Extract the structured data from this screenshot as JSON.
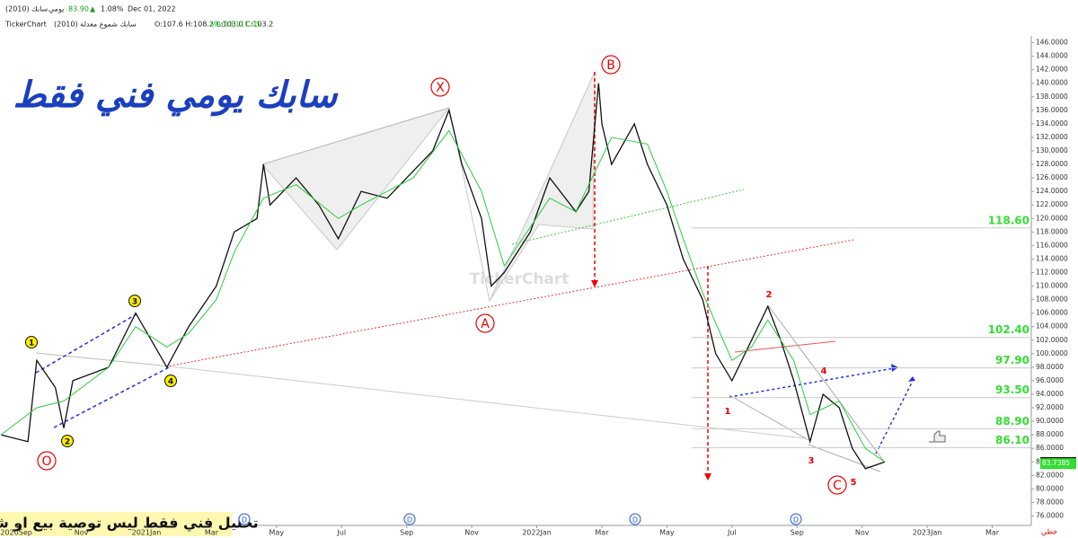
{
  "chart_data": {
    "type": "line",
    "title": "سابك يومي فني فقط",
    "header": {
      "symbol": "سابك (2010)",
      "period": "يومي",
      "price": "83.90",
      "arrow": "▲",
      "change": "1.08%",
      "date": "Dec 01, 2022",
      "brand": "TickerChart",
      "series_name": "سابك شموع معدلة (2010)",
      "ohlc": "O:107.6 H:108.2 L:103.0 C:103.2",
      "ma_name": "MA(13)",
      "ma_value": "111.05"
    },
    "watermark": "TickerChart",
    "note": "تحليل فني فقط ليس توصية بيع او شراء",
    "chart_style": "خطي",
    "xlim": [
      -0.5,
      31.2
    ],
    "xticks": [
      {
        "value": 0,
        "label": "2020Sep"
      },
      {
        "value": 2,
        "label": "Nov"
      },
      {
        "value": 4,
        "label": "2021Jan"
      },
      {
        "value": 6,
        "label": "Mar"
      },
      {
        "value": 8,
        "label": "May"
      },
      {
        "value": 10,
        "label": "Jul"
      },
      {
        "value": 12,
        "label": "Sep"
      },
      {
        "value": 14,
        "label": "Nov"
      },
      {
        "value": 16,
        "label": "2022Jan"
      },
      {
        "value": 18,
        "label": "Mar"
      },
      {
        "value": 20,
        "label": "May"
      },
      {
        "value": 22,
        "label": "Jul"
      },
      {
        "value": 24,
        "label": "Sep"
      },
      {
        "value": 26,
        "label": "Nov"
      },
      {
        "value": 28,
        "label": "2023Jan"
      },
      {
        "value": 30,
        "label": "Mar"
      }
    ],
    "ylim": [
      75,
      147
    ],
    "yticks": [
      {
        "value": 76,
        "label": "76.0000"
      },
      {
        "value": 78,
        "label": "78.0000"
      },
      {
        "value": 80,
        "label": "80.0000"
      },
      {
        "value": 82,
        "label": "82.0000"
      },
      {
        "value": 84,
        "label": "84.0000"
      },
      {
        "value": 86,
        "label": "86.0000"
      },
      {
        "value": 88,
        "label": "88.0000"
      },
      {
        "value": 90,
        "label": "90.0000"
      },
      {
        "value": 92,
        "label": "92.0000"
      },
      {
        "value": 94,
        "label": "94.0000"
      },
      {
        "value": 96,
        "label": "96.0000"
      },
      {
        "value": 98,
        "label": "98.0000"
      },
      {
        "value": 100,
        "label": "100.0000"
      },
      {
        "value": 102,
        "label": "102.0000"
      },
      {
        "value": 104,
        "label": "104.0000"
      },
      {
        "value": 106,
        "label": "106.0000"
      },
      {
        "value": 108,
        "label": "108.0000"
      },
      {
        "value": 110,
        "label": "110.0000"
      },
      {
        "value": 112,
        "label": "112.0000"
      },
      {
        "value": 114,
        "label": "114.0000"
      },
      {
        "value": 116,
        "label": "116.0000"
      },
      {
        "value": 118,
        "label": "118.0000"
      },
      {
        "value": 120,
        "label": "120.0000"
      },
      {
        "value": 122,
        "label": "122.0000"
      },
      {
        "value": 124,
        "label": "124.0000"
      },
      {
        "value": 126,
        "label": "126.0000"
      },
      {
        "value": 128,
        "label": "128.0000"
      },
      {
        "value": 130,
        "label": "130.0000"
      },
      {
        "value": 132,
        "label": "132.0000"
      },
      {
        "value": 134,
        "label": "134.0000"
      },
      {
        "value": 136,
        "label": "136.0000"
      },
      {
        "value": 138,
        "label": "138.0000"
      },
      {
        "value": 140,
        "label": "140.0000"
      },
      {
        "value": 142,
        "label": "142.0000"
      },
      {
        "value": 144,
        "label": "144.0000"
      },
      {
        "value": 146,
        "label": "146.0000"
      }
    ],
    "series": [
      {
        "name": "سابك",
        "color": "#111111",
        "x": [
          -0.47,
          0.36,
          0.63,
          1.2,
          1.46,
          1.74,
          2.84,
          3.67,
          4.63,
          5.3,
          6.15,
          6.7,
          7.4,
          7.6,
          7.8,
          8.6,
          9.3,
          9.9,
          10.6,
          11.4,
          12.2,
          12.8,
          13.3,
          13.7,
          14.3,
          14.6,
          15.0,
          15.8,
          16.4,
          17.2,
          17.6,
          17.9,
          18.0,
          18.3,
          19.0,
          19.4,
          20.0,
          20.5,
          21.1,
          21.5,
          22.0,
          22.6,
          23.1,
          23.5,
          23.9,
          24.4,
          24.8,
          25.3,
          25.7,
          26.1,
          26.7
        ],
        "values": [
          88,
          87,
          99,
          95,
          89,
          96,
          98,
          106,
          98,
          104,
          110,
          118,
          120,
          128,
          122,
          126,
          122,
          117,
          124,
          123,
          127,
          130,
          136,
          128,
          120,
          110,
          112,
          118,
          126,
          121,
          124,
          140,
          134,
          128,
          134,
          128,
          122,
          114,
          108,
          100,
          96,
          102,
          107,
          102,
          96,
          87,
          94,
          92,
          86,
          83,
          84
        ]
      },
      {
        "name": "MA(13)",
        "color": "#2ecc40",
        "x": [
          -0.47,
          0.63,
          1.46,
          2.84,
          3.67,
          4.63,
          5.3,
          6.15,
          6.7,
          7.6,
          8.6,
          9.9,
          10.6,
          12.2,
          13.3,
          14.3,
          15.0,
          16.4,
          17.2,
          17.9,
          18.3,
          19.4,
          20.0,
          20.5,
          21.1,
          22.0,
          22.6,
          23.1,
          23.9,
          24.4,
          25.3,
          26.1,
          26.7
        ],
        "values": [
          88,
          92,
          93,
          98,
          104,
          101,
          103,
          108,
          115,
          123,
          125,
          120,
          122,
          126,
          133,
          124,
          113,
          123,
          121,
          128,
          132,
          131,
          124,
          117,
          109,
          99,
          101,
          105,
          99,
          91,
          93,
          86,
          84
        ]
      }
    ],
    "levels": {
      "values": [
        118.6,
        102.4,
        97.9,
        93.5,
        88.9,
        86.1
      ],
      "value_labels": [
        "118.60",
        "102.40",
        "97.90",
        "93.50",
        "88.90",
        "86.10"
      ],
      "color": "#33dd33"
    },
    "last_price": {
      "value": 83.9,
      "label": "83.9000"
    },
    "ma_last": {
      "value": 83.7385,
      "label": "83.7385"
    },
    "wave_labels": {
      "circled": [
        "X",
        "B",
        "A",
        "O",
        "C"
      ],
      "red_numbers": [
        "1",
        "2",
        "3",
        "4",
        "5"
      ],
      "yellow_numbers": [
        "1",
        "2",
        "3",
        "4"
      ],
      "dividend": [
        "D",
        "D",
        "D",
        "D"
      ]
    }
  }
}
